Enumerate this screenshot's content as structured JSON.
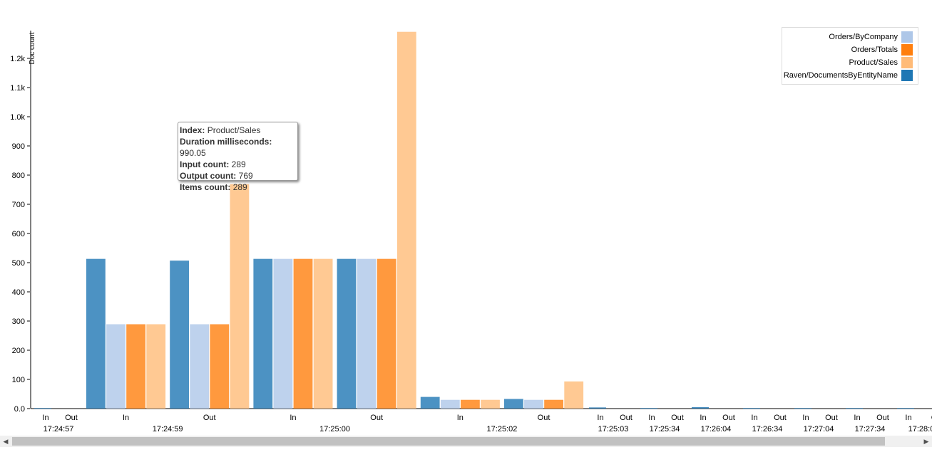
{
  "chart_data": {
    "type": "bar",
    "ylabel": "Doc count",
    "ylim": [
      0,
      1300
    ],
    "y_ticks": [
      "0.0",
      "100",
      "200",
      "300",
      "400",
      "500",
      "600",
      "700",
      "800",
      "900",
      "1.0k",
      "1.1k",
      "1.2k"
    ],
    "series": [
      {
        "name": "Raven/DocumentsByEntityName",
        "color": "#1f77b4"
      },
      {
        "name": "Orders/ByCompany",
        "color": "#aec7e8"
      },
      {
        "name": "Orders/Totals",
        "color": "#ff7f0e"
      },
      {
        "name": "Product/Sales",
        "color": "#ffbb78"
      }
    ],
    "groups": [
      {
        "label": "In",
        "time": "17:24:57",
        "values": [
          2,
          0,
          0,
          0
        ]
      },
      {
        "label": "Out",
        "time": "17:24:57",
        "values": [
          0,
          0,
          0,
          0
        ]
      },
      {
        "label": "In",
        "time": "17:24:59",
        "values": [
          513,
          289,
          289,
          289
        ]
      },
      {
        "label": "Out",
        "time": "17:24:59",
        "values": [
          507,
          289,
          289,
          769
        ]
      },
      {
        "label": "In",
        "time": "17:25:00",
        "values": [
          513,
          513,
          513,
          513
        ]
      },
      {
        "label": "Out",
        "time": "17:25:00",
        "values": [
          513,
          513,
          513,
          1291
        ]
      },
      {
        "label": "In",
        "time": "17:25:02",
        "values": [
          40,
          30,
          30,
          30
        ]
      },
      {
        "label": "Out",
        "time": "17:25:02",
        "values": [
          33,
          30,
          30,
          93
        ]
      },
      {
        "label": "In",
        "time": "17:25:03",
        "values": [
          4,
          0,
          0,
          0
        ]
      },
      {
        "label": "Out",
        "time": "17:25:03",
        "values": [
          0,
          0,
          0,
          0
        ]
      },
      {
        "label": "In",
        "time": "17:25:34",
        "values": [
          2,
          0,
          0,
          0
        ]
      },
      {
        "label": "Out",
        "time": "17:25:34",
        "values": [
          0,
          0,
          0,
          0
        ]
      },
      {
        "label": "In",
        "time": "17:26:04",
        "values": [
          5,
          0,
          0,
          0
        ]
      },
      {
        "label": "Out",
        "time": "17:26:04",
        "values": [
          0,
          0,
          0,
          0
        ]
      },
      {
        "label": "In",
        "time": "17:26:34",
        "values": [
          2,
          0,
          0,
          0
        ]
      },
      {
        "label": "Out",
        "time": "17:26:34",
        "values": [
          0,
          0,
          0,
          0
        ]
      },
      {
        "label": "In",
        "time": "17:27:04",
        "values": [
          2,
          0,
          0,
          0
        ]
      },
      {
        "label": "Out",
        "time": "17:27:04",
        "values": [
          0,
          0,
          0,
          0
        ]
      },
      {
        "label": "In",
        "time": "17:27:34",
        "values": [
          2,
          0,
          0,
          0
        ]
      },
      {
        "label": "Out",
        "time": "17:27:34",
        "values": [
          0,
          0,
          0,
          0
        ]
      },
      {
        "label": "In",
        "time": "17:28:0",
        "values": [
          2,
          0,
          0,
          0
        ]
      },
      {
        "label": "O",
        "time": "",
        "values": [
          0,
          0,
          0,
          0
        ]
      }
    ],
    "legend_position": "top-right",
    "grid": false
  },
  "legend": {
    "items": [
      {
        "label": "Orders/ByCompany",
        "color": "#aec7e8"
      },
      {
        "label": "Orders/Totals",
        "color": "#ff7f0e"
      },
      {
        "label": "Product/Sales",
        "color": "#ffbb78"
      },
      {
        "label": "Raven/DocumentsByEntityName",
        "color": "#1f77b4"
      }
    ]
  },
  "tooltip": {
    "index_key": "Index:",
    "index_val": "Product/Sales",
    "duration_key": "Duration milliseconds:",
    "duration_val": "990.05",
    "input_key": "Input count:",
    "input_val": "289",
    "output_key": "Output count:",
    "output_val": "769",
    "items_key": "Items count:",
    "items_val": "289"
  }
}
